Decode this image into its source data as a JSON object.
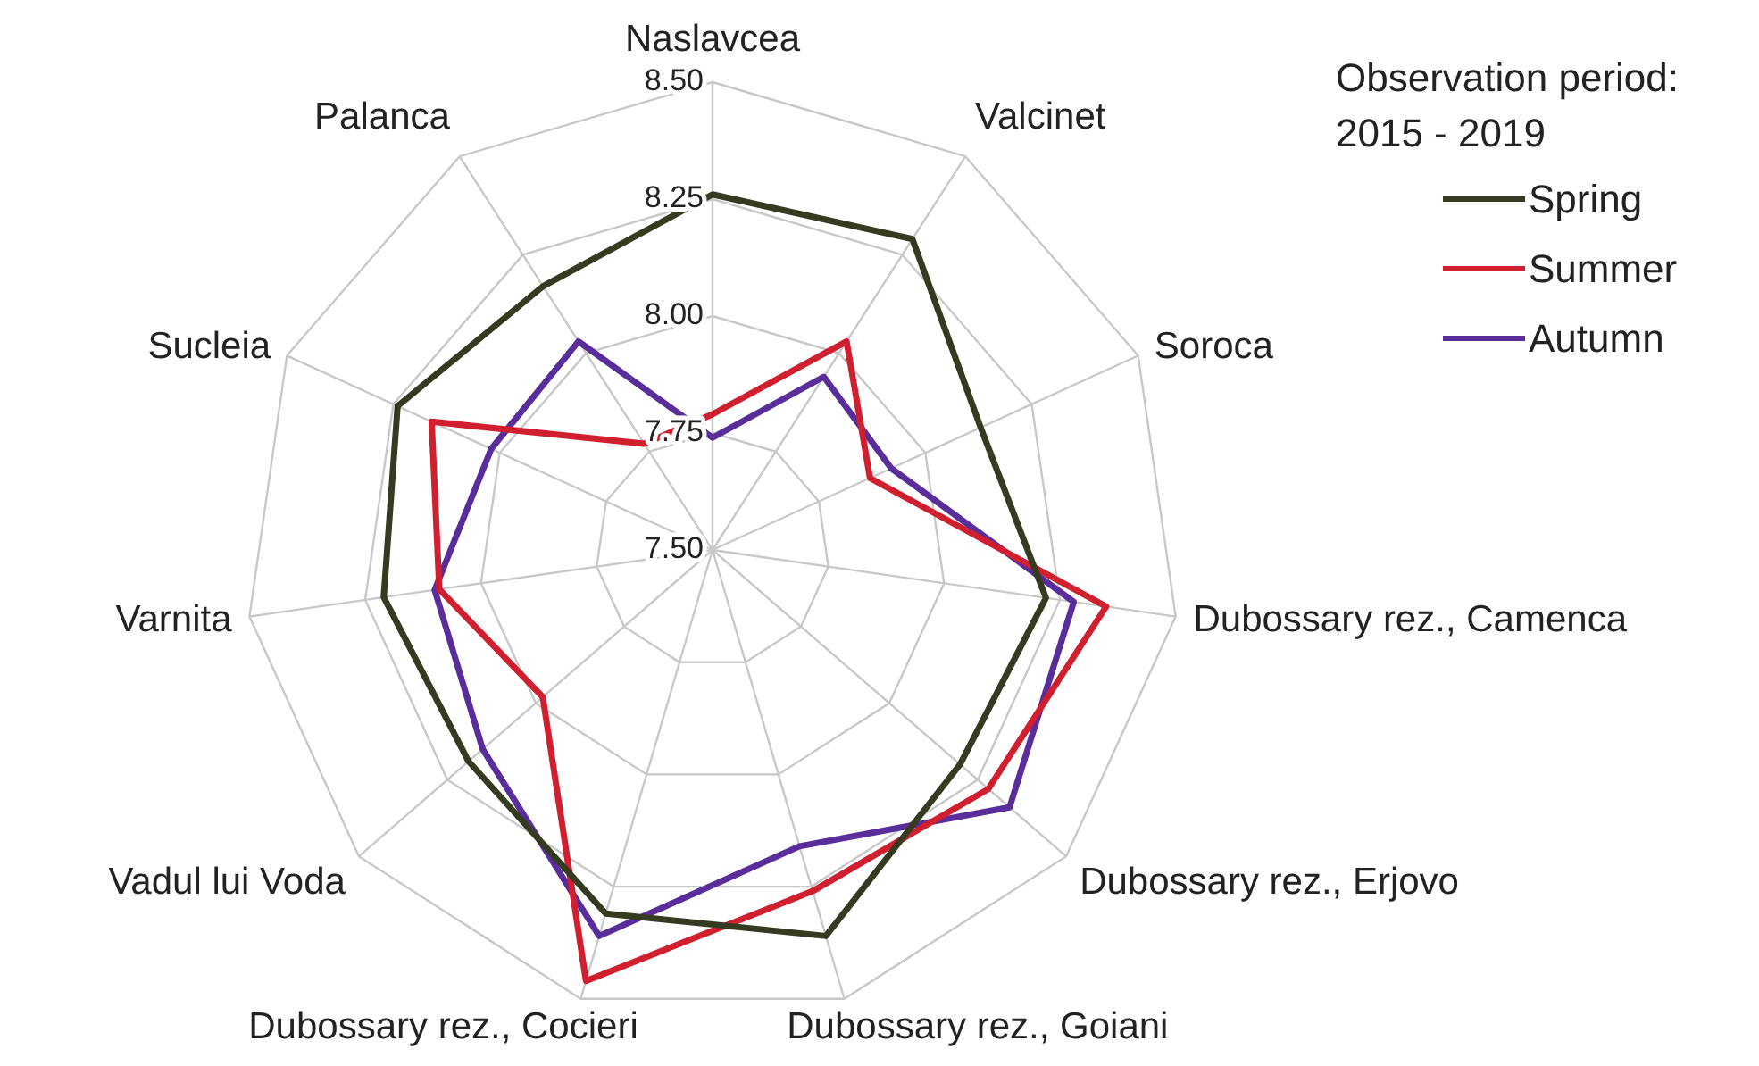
{
  "chart_data": {
    "type": "radar",
    "legend_title": "Observation period: 2015 - 2019",
    "categories": [
      "Naslavcea",
      "Valcinet",
      "Soroca",
      "Dubossary rez., Camenca",
      "Dubossary rez., Erjovo",
      "Dubossary rez., Goiani",
      "Dubossary rez., Cocieri",
      "Vadul lui Voda",
      "Varnita",
      "Sucleia",
      "Palanca"
    ],
    "series": [
      {
        "name": "Spring",
        "color": "#353b20",
        "values": [
          8.26,
          8.29,
          8.13,
          8.22,
          8.2,
          8.36,
          8.31,
          8.19,
          8.21,
          8.24,
          8.17
        ]
      },
      {
        "name": "Summer",
        "color": "#d01f2e",
        "values": [
          7.79,
          8.03,
          7.87,
          8.35,
          8.28,
          8.26,
          8.46,
          7.98,
          8.09,
          8.16,
          7.77
        ]
      },
      {
        "name": "Autumn",
        "color": "#5a2e9a",
        "values": [
          7.74,
          7.94,
          7.92,
          8.28,
          8.34,
          8.16,
          8.36,
          8.15,
          8.1,
          8.02,
          8.03
        ]
      }
    ],
    "ylim": [
      7.5,
      8.5
    ],
    "yticks": [
      {
        "value": 7.5,
        "label": "7.50"
      },
      {
        "value": 7.75,
        "label": "7.75"
      },
      {
        "value": 8,
        "label": "8.00"
      },
      {
        "value": 8.25,
        "label": "8.25"
      },
      {
        "value": 8.5,
        "label": "8.50"
      }
    ],
    "grid": true,
    "legend": "top right",
    "marker": "none"
  }
}
